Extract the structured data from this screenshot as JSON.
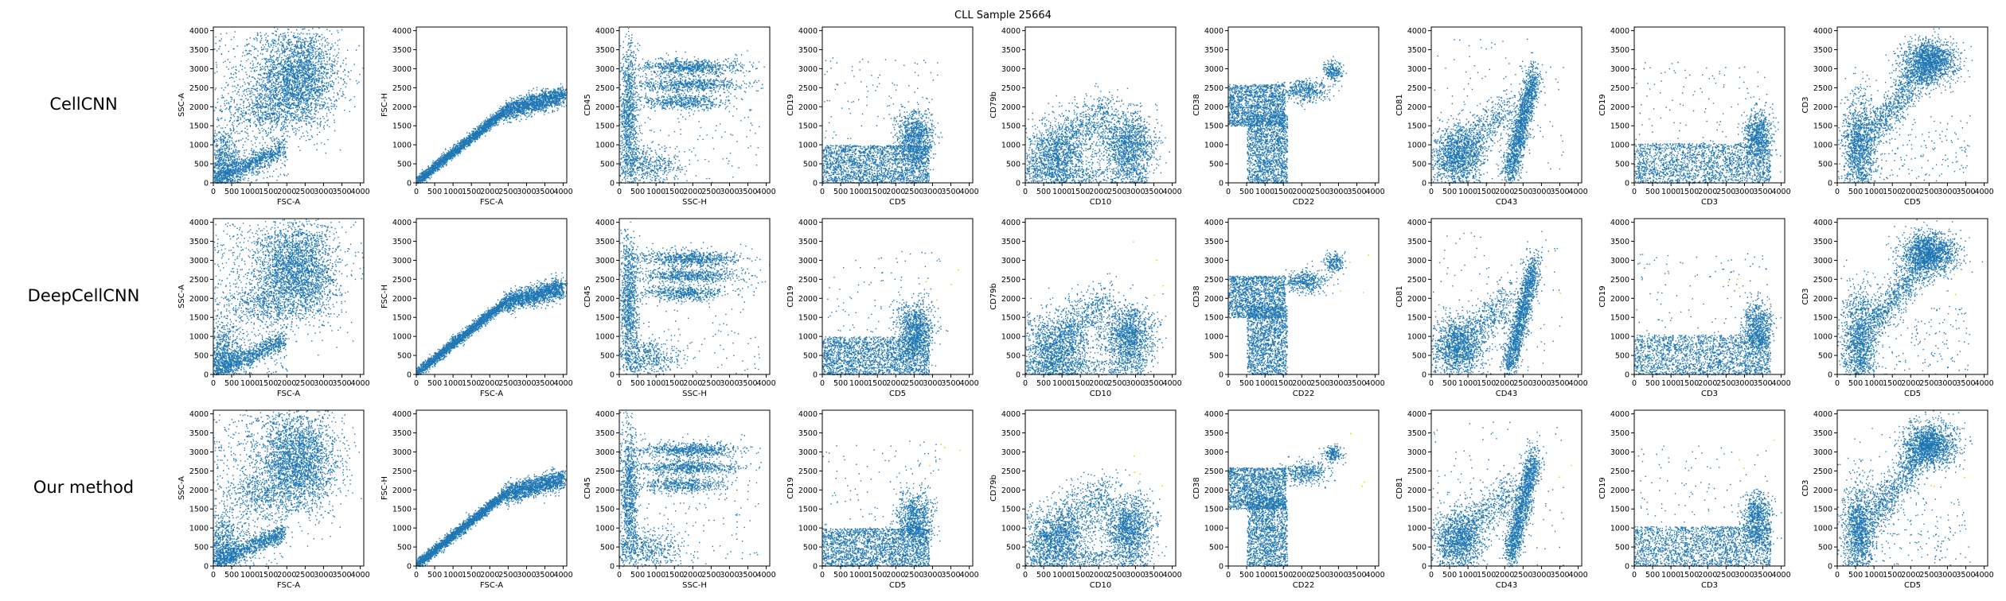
{
  "figure": {
    "title": "CLL Sample 25664",
    "row_labels": [
      "CellCNN",
      "DeepCellCNN",
      "Our method"
    ]
  },
  "colors": {
    "points": "#1f77b4",
    "highlight": "#ffbf00",
    "axis": "#000000"
  },
  "chart_data": {
    "type": "scatter",
    "grid": false,
    "xlim": [
      0,
      4096
    ],
    "ylim": [
      0,
      4096
    ],
    "ticks": [
      0,
      500,
      1000,
      1500,
      2000,
      2500,
      3000,
      3500,
      4000
    ],
    "panels": [
      {
        "xlabel": "FSC-A",
        "ylabel": "SSC-A"
      },
      {
        "xlabel": "FSC-A",
        "ylabel": "FSC-H"
      },
      {
        "xlabel": "SSC-H",
        "ylabel": "CD45"
      },
      {
        "xlabel": "CD5",
        "ylabel": "CD19"
      },
      {
        "xlabel": "CD10",
        "ylabel": "CD79b"
      },
      {
        "xlabel": "CD22",
        "ylabel": "CD38"
      },
      {
        "xlabel": "CD43",
        "ylabel": "CD81"
      },
      {
        "xlabel": "CD3",
        "ylabel": "CD19"
      },
      {
        "xlabel": "CD5",
        "ylabel": "CD3"
      }
    ],
    "clusters": [
      [
        {
          "n": 2600,
          "shape": "gauss",
          "cx": 2300,
          "cy": 2750,
          "sx": 550,
          "sy": 650
        },
        {
          "n": 500,
          "shape": "uniform",
          "x0": 0,
          "x1": 2000,
          "y0": 0,
          "y1": 4000
        },
        {
          "n": 900,
          "shape": "diag",
          "x0": 0,
          "x1": 1900,
          "y0": 100,
          "y1": 900,
          "w": 130
        },
        {
          "n": 700,
          "shape": "gauss",
          "cx": 250,
          "cy": 500,
          "sx": 250,
          "sy": 450
        },
        {
          "n": 400,
          "shape": "gauss",
          "cx": 1300,
          "cy": 1900,
          "sx": 500,
          "sy": 300
        }
      ],
      [
        {
          "n": 2200,
          "shape": "diag",
          "x0": 0,
          "x1": 2400,
          "y0": 50,
          "y1": 1900,
          "w": 70
        },
        {
          "n": 1500,
          "shape": "diag",
          "x0": 2400,
          "x1": 4000,
          "y0": 1900,
          "y1": 2300,
          "w": 130
        }
      ],
      [
        {
          "n": 700,
          "shape": "gauss",
          "cx": 1900,
          "cy": 3050,
          "sx": 700,
          "sy": 100
        },
        {
          "n": 600,
          "shape": "gauss",
          "cx": 1900,
          "cy": 2600,
          "sx": 700,
          "sy": 90
        },
        {
          "n": 500,
          "shape": "gauss",
          "cx": 1700,
          "cy": 2150,
          "sx": 600,
          "sy": 100
        },
        {
          "n": 900,
          "shape": "gauss",
          "cx": 250,
          "cy": 1900,
          "sx": 120,
          "sy": 900
        },
        {
          "n": 500,
          "shape": "gauss",
          "cx": 700,
          "cy": 450,
          "sx": 500,
          "sy": 250
        },
        {
          "n": 200,
          "shape": "uniform",
          "x0": 0,
          "x1": 3800,
          "y0": 0,
          "y1": 3500
        }
      ],
      [
        {
          "n": 2000,
          "shape": "uniform",
          "x0": 0,
          "x1": 2900,
          "y0": 0,
          "y1": 1000
        },
        {
          "n": 900,
          "shape": "gauss",
          "cx": 2500,
          "cy": 1200,
          "sx": 250,
          "sy": 350
        },
        {
          "n": 100,
          "shape": "uniform",
          "x0": 0,
          "x1": 3200,
          "y0": 1000,
          "y1": 3300
        }
      ],
      [
        {
          "n": 1400,
          "shape": "gauss",
          "cx": 800,
          "cy": 700,
          "sx": 450,
          "sy": 450
        },
        {
          "n": 1300,
          "shape": "gauss",
          "cx": 2800,
          "cy": 1000,
          "sx": 350,
          "sy": 450
        },
        {
          "n": 500,
          "shape": "diag",
          "x0": 1000,
          "x1": 2300,
          "y0": 1200,
          "y1": 1900,
          "w": 350
        },
        {
          "n": 400,
          "shape": "uniform",
          "x0": 0,
          "x1": 3300,
          "y0": 0,
          "y1": 400
        }
      ],
      [
        {
          "n": 1500,
          "shape": "uniform",
          "x0": 0,
          "x1": 1550,
          "y0": 1500,
          "y1": 2600
        },
        {
          "n": 1500,
          "shape": "uniform",
          "x0": 500,
          "x1": 1600,
          "y0": 0,
          "y1": 1800
        },
        {
          "n": 400,
          "shape": "gauss",
          "cx": 2100,
          "cy": 2450,
          "sx": 300,
          "sy": 150
        },
        {
          "n": 200,
          "shape": "gauss",
          "cx": 2850,
          "cy": 2950,
          "sx": 130,
          "sy": 120
        }
      ],
      [
        {
          "n": 1300,
          "shape": "gauss",
          "cx": 700,
          "cy": 700,
          "sx": 350,
          "sy": 400
        },
        {
          "n": 1600,
          "shape": "diag",
          "x0": 2100,
          "x1": 2800,
          "y0": 200,
          "y1": 2900,
          "w": 220
        },
        {
          "n": 500,
          "shape": "diag",
          "x0": 800,
          "x1": 2200,
          "y0": 900,
          "y1": 2000,
          "w": 300
        },
        {
          "n": 120,
          "shape": "uniform",
          "x0": 0,
          "x1": 3600,
          "y0": 0,
          "y1": 3800
        }
      ],
      [
        {
          "n": 1900,
          "shape": "uniform",
          "x0": 0,
          "x1": 3700,
          "y0": 0,
          "y1": 1050
        },
        {
          "n": 700,
          "shape": "gauss",
          "cx": 3350,
          "cy": 1250,
          "sx": 200,
          "sy": 350
        },
        {
          "n": 100,
          "shape": "uniform",
          "x0": 0,
          "x1": 3600,
          "y0": 1000,
          "y1": 3200
        }
      ],
      [
        {
          "n": 1400,
          "shape": "gauss",
          "cx": 2500,
          "cy": 3200,
          "sx": 380,
          "sy": 280
        },
        {
          "n": 1300,
          "shape": "gauss",
          "cx": 600,
          "cy": 900,
          "sx": 220,
          "sy": 700
        },
        {
          "n": 900,
          "shape": "diag",
          "x0": 900,
          "x1": 2600,
          "y0": 1300,
          "y1": 3300,
          "w": 280
        },
        {
          "n": 200,
          "shape": "uniform",
          "x0": 0,
          "x1": 3600,
          "y0": 0,
          "y1": 1800
        }
      ]
    ]
  }
}
